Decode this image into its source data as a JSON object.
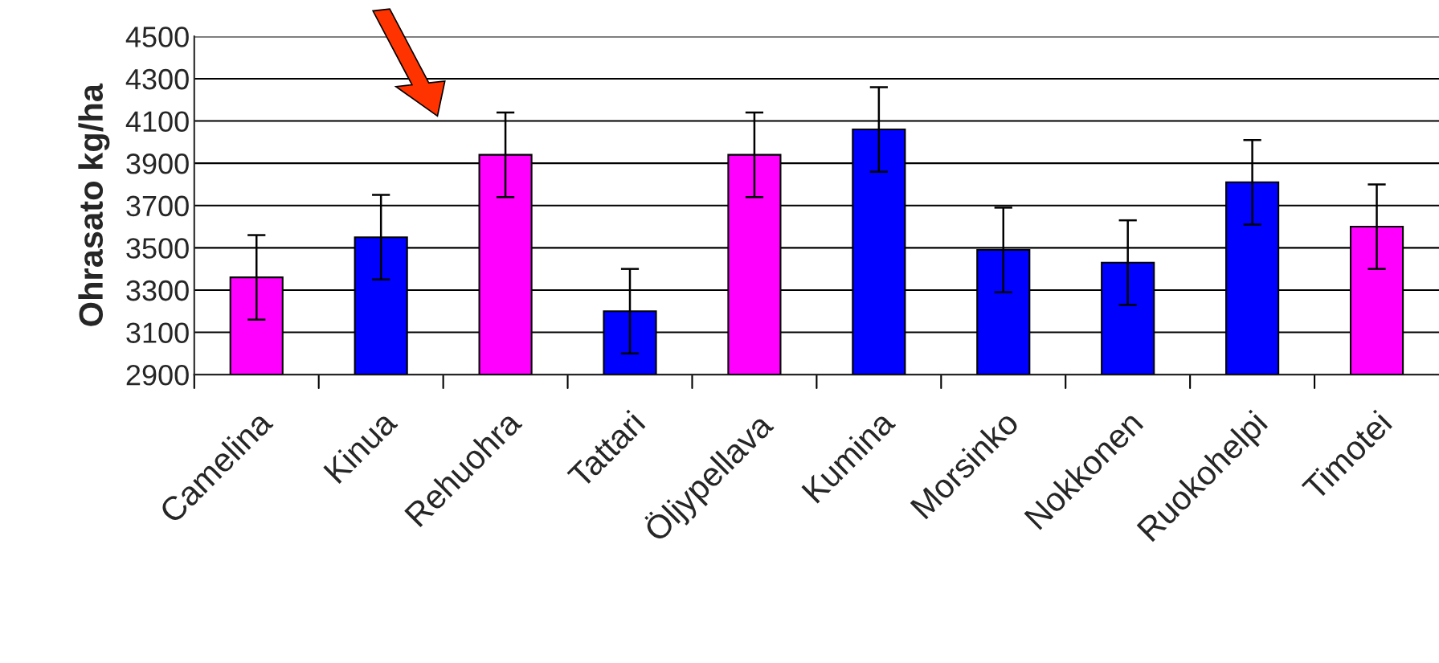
{
  "chart_data": {
    "type": "bar",
    "ylabel": "Ohrasato kg/ha",
    "categories": [
      "Camelina",
      "Kinua",
      "Rehuohra",
      "Tattari",
      "Öljypellava",
      "Kumina",
      "Morsinko",
      "Nokkonen",
      "Ruokohelpi",
      "Timotei"
    ],
    "values": [
      3360,
      3550,
      3940,
      3200,
      3940,
      4060,
      3490,
      3430,
      3810,
      3600
    ],
    "colors": [
      "#ff00ff",
      "#0000ff",
      "#ff00ff",
      "#0000ff",
      "#ff00ff",
      "#0000ff",
      "#0000ff",
      "#0000ff",
      "#0000ff",
      "#ff00ff"
    ],
    "errors": [
      200,
      200,
      200,
      200,
      200,
      200,
      200,
      200,
      200,
      200
    ],
    "ylim": [
      2900,
      4500
    ],
    "yticks": [
      2900,
      3100,
      3300,
      3500,
      3700,
      3900,
      4100,
      4300,
      4500
    ],
    "grid": "y",
    "legend": false
  }
}
